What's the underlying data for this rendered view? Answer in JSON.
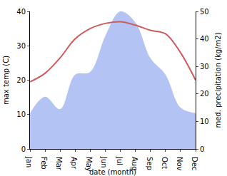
{
  "chart_data": {
    "type": "line",
    "xlabel": "date (month)",
    "ylabel": "max temp (C)",
    "y2label": "med. precipitation (kg/m2)",
    "categories": [
      "Jan",
      "Feb",
      "Mar",
      "Apr",
      "May",
      "Jun",
      "Jul",
      "Aug",
      "Sep",
      "Oct",
      "Nov",
      "Dec"
    ],
    "series": [
      {
        "type": "area",
        "axis": "y2",
        "color": "#b3c3f3",
        "values": [
          13,
          19,
          14.5,
          27,
          28,
          41,
          50,
          46,
          33,
          27,
          15,
          13
        ]
      },
      {
        "type": "line",
        "color": "#cd5c5c",
        "values": [
          19.5,
          22,
          26.5,
          32,
          35,
          36.5,
          37,
          36,
          34.5,
          33.5,
          28,
          20
        ]
      }
    ],
    "ylim": [
      0,
      40
    ],
    "yticks": [
      0,
      10,
      20,
      30,
      40
    ],
    "y2lim": [
      0,
      50
    ],
    "y2ticks": [
      0,
      10,
      20,
      30,
      40,
      50
    ],
    "grid": false
  }
}
